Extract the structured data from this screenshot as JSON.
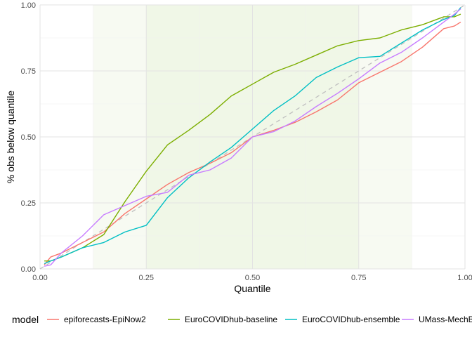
{
  "chart_data": {
    "type": "line",
    "xlabel": "Quantile",
    "ylabel": "% obs below quantile",
    "xlim": [
      0,
      1
    ],
    "ylim": [
      0,
      1
    ],
    "x_ticks": [
      "0.00",
      "0.25",
      "0.50",
      "0.75",
      "1.00"
    ],
    "y_ticks": [
      "0.00",
      "0.25",
      "0.50",
      "0.75",
      "1.00"
    ],
    "grid": true,
    "shaded_region": {
      "x_from": 0.125,
      "x_to": 0.875,
      "inner_from": 0.25,
      "inner_to": 0.75,
      "color": "#eef5e3"
    },
    "reference_line": {
      "style": "dashed",
      "color": "#bfbfbf",
      "from": [
        0,
        0
      ],
      "to": [
        1,
        1
      ]
    },
    "legend": {
      "title": "model",
      "position": "bottom"
    },
    "quantiles": [
      0.01,
      0.025,
      0.05,
      0.1,
      0.15,
      0.2,
      0.25,
      0.3,
      0.35,
      0.4,
      0.45,
      0.5,
      0.55,
      0.6,
      0.65,
      0.7,
      0.75,
      0.8,
      0.85,
      0.9,
      0.95,
      0.975,
      0.99
    ],
    "series": [
      {
        "name": "epiforecasts-EpiNow2",
        "color": "#F8766D",
        "values": [
          0.015,
          0.045,
          0.06,
          0.1,
          0.14,
          0.21,
          0.265,
          0.32,
          0.365,
          0.4,
          0.44,
          0.5,
          0.525,
          0.555,
          0.595,
          0.64,
          0.705,
          0.745,
          0.785,
          0.84,
          0.91,
          0.92,
          0.935
        ]
      },
      {
        "name": "EuroCOVIDhub-baseline",
        "color": "#7CAE00",
        "values": [
          0.03,
          0.03,
          0.045,
          0.08,
          0.13,
          0.255,
          0.37,
          0.47,
          0.525,
          0.585,
          0.655,
          0.7,
          0.745,
          0.775,
          0.81,
          0.845,
          0.865,
          0.875,
          0.905,
          0.925,
          0.955,
          0.955,
          0.965
        ]
      },
      {
        "name": "EuroCOVIDhub-ensemble",
        "color": "#00BFC4",
        "values": [
          0.02,
          0.03,
          0.045,
          0.08,
          0.1,
          0.14,
          0.165,
          0.27,
          0.345,
          0.405,
          0.46,
          0.53,
          0.6,
          0.655,
          0.725,
          0.765,
          0.8,
          0.805,
          0.855,
          0.905,
          0.945,
          0.96,
          0.99
        ]
      },
      {
        "name": "UMass-MechBayes",
        "color": "#C77CFF",
        "values": [
          0.01,
          0.015,
          0.06,
          0.125,
          0.205,
          0.24,
          0.275,
          0.29,
          0.355,
          0.375,
          0.42,
          0.5,
          0.52,
          0.56,
          0.615,
          0.665,
          0.72,
          0.78,
          0.82,
          0.875,
          0.935,
          0.965,
          0.985
        ]
      }
    ]
  }
}
